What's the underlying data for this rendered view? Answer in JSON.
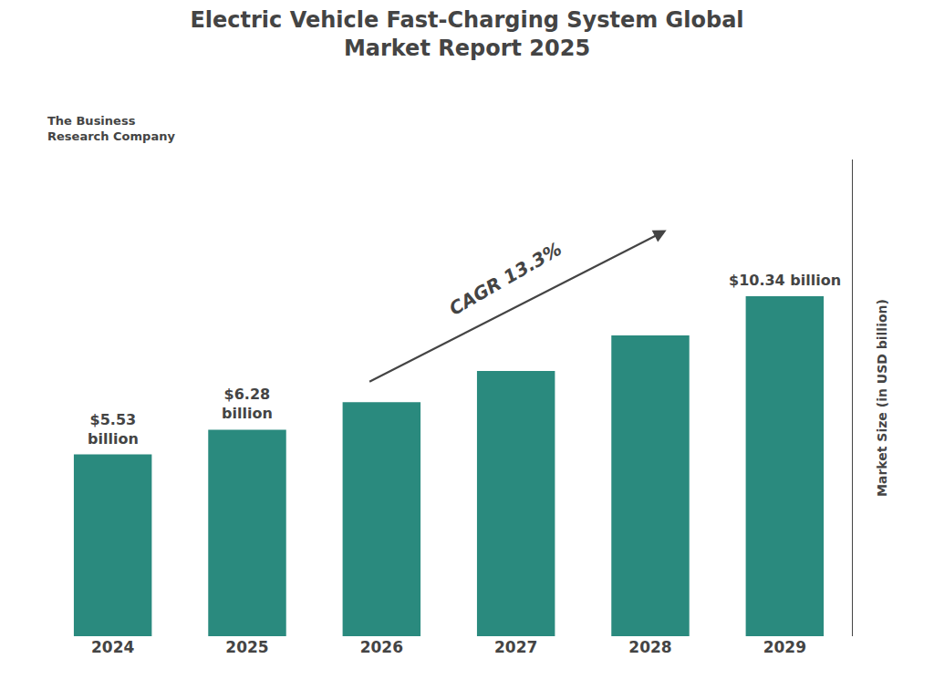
{
  "chart_data": {
    "type": "bar",
    "title": "Electric Vehicle Fast-Charging System Global\nMarket Report 2025",
    "categories": [
      "2024",
      "2025",
      "2026",
      "2027",
      "2028",
      "2029"
    ],
    "values": [
      5.53,
      6.28,
      7.12,
      8.07,
      9.15,
      10.34
    ],
    "value_labels": [
      "$5.53\nbillion",
      "$6.28\nbillion",
      null,
      null,
      null,
      "$10.34 billion"
    ],
    "color": "#2A8A7E",
    "ylabel": "Market Size (in USD billion)",
    "ylim": [
      0,
      14.5
    ],
    "grid": false,
    "tick_labels": "x",
    "annotations": [
      "CAGR 13.3%",
      "The Business\nResearch Company"
    ]
  }
}
